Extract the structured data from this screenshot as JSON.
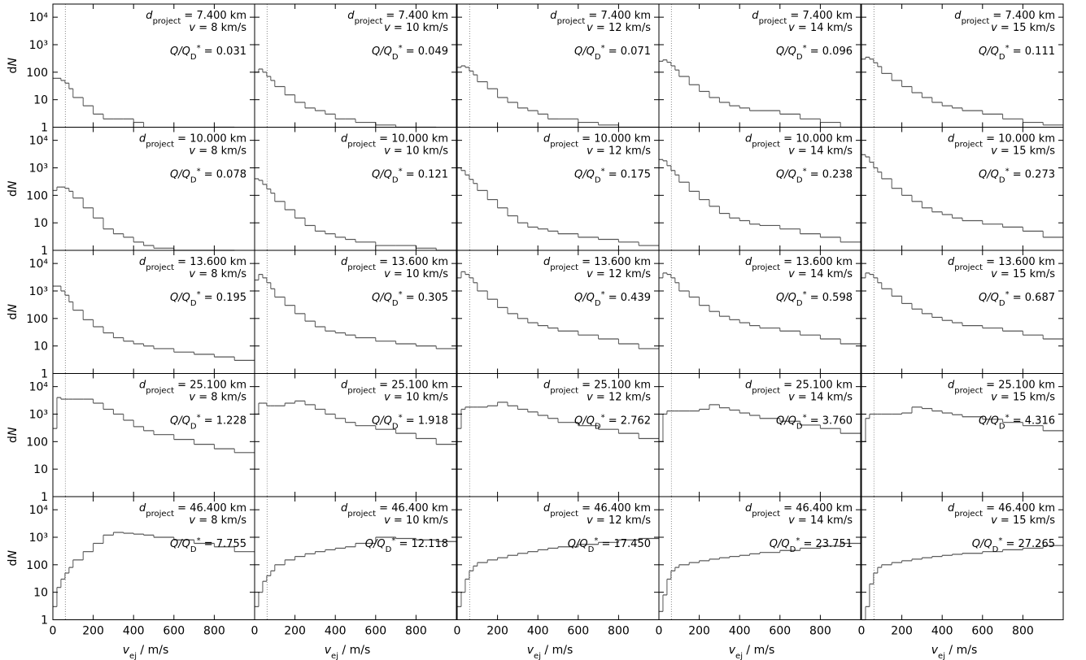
{
  "chart_data": {
    "type": "histogram-grid",
    "log_y": true,
    "xlim": [
      0,
      1000
    ],
    "ylim": [
      1,
      30000
    ],
    "xticks": [
      0,
      200,
      400,
      600,
      800
    ],
    "yticks": [
      1,
      10,
      100,
      {
        "value": 1000,
        "label": "10³"
      },
      {
        "value": 10000,
        "label": "10⁴"
      }
    ],
    "reference_x": 62,
    "color": "#555555",
    "xlabel": {
      "symbol": "v",
      "subscript": "ej",
      "unit": " / m/s"
    },
    "ylabel": {
      "prefix": "d",
      "symbol": "N"
    },
    "labels": {
      "d_symbol": "d",
      "d_subscript": "project",
      "v_symbol": "v",
      "q_symbol": "Q/Q",
      "q_subscript": "D",
      "q_superscript": "*",
      "equals": " = "
    },
    "bins": [
      0,
      20,
      40,
      60,
      80,
      100,
      150,
      200,
      250,
      300,
      350,
      400,
      450,
      500,
      600,
      700,
      800,
      900,
      1000
    ],
    "panels": [
      {
        "d_project": "7.400 km",
        "v": "8 km/s",
        "q": "0.031",
        "values": [
          60,
          60,
          50,
          40,
          25,
          12,
          6,
          3,
          2,
          2,
          2,
          1.5,
          null,
          null,
          null,
          null,
          1,
          null
        ]
      },
      {
        "d_project": "7.400 km",
        "v": "10 km/s",
        "q": "0.049",
        "values": [
          100,
          130,
          100,
          70,
          50,
          30,
          15,
          8,
          5,
          4,
          3,
          2,
          2,
          1.5,
          1.2,
          1,
          1,
          null
        ]
      },
      {
        "d_project": "7.400 km",
        "v": "12 km/s",
        "q": "0.071",
        "values": [
          150,
          170,
          150,
          110,
          80,
          45,
          25,
          12,
          8,
          5,
          4,
          3,
          2,
          2,
          1.5,
          1.2,
          1,
          1
        ]
      },
      {
        "d_project": "7.400 km",
        "v": "14 km/s",
        "q": "0.096",
        "values": [
          250,
          280,
          230,
          170,
          120,
          70,
          35,
          20,
          12,
          8,
          6,
          5,
          4,
          4,
          3,
          2,
          1.5,
          1
        ]
      },
      {
        "d_project": "7.400 km",
        "v": "15 km/s",
        "q": "0.111",
        "values": [
          300,
          350,
          300,
          220,
          160,
          90,
          50,
          30,
          18,
          12,
          8,
          6,
          5,
          4,
          3,
          2,
          1.5,
          1.2
        ]
      },
      {
        "d_project": "10.000 km",
        "v": "8 km/s",
        "q": "0.078",
        "values": [
          150,
          200,
          200,
          180,
          140,
          80,
          35,
          15,
          6,
          4,
          3,
          2,
          1.5,
          1.2,
          1,
          1,
          1,
          null
        ]
      },
      {
        "d_project": "10.000 km",
        "v": "10 km/s",
        "q": "0.121",
        "values": [
          400,
          350,
          250,
          170,
          120,
          60,
          30,
          15,
          8,
          5,
          4,
          3,
          2.5,
          2,
          1.5,
          1.5,
          1.2,
          1
        ]
      },
      {
        "d_project": "10.000 km",
        "v": "12 km/s",
        "q": "0.175",
        "values": [
          1000,
          800,
          550,
          380,
          270,
          150,
          70,
          35,
          18,
          10,
          7,
          6,
          5,
          4,
          3,
          2.5,
          2,
          1.5
        ]
      },
      {
        "d_project": "10.000 km",
        "v": "14 km/s",
        "q": "0.238",
        "values": [
          2000,
          1800,
          1200,
          800,
          550,
          300,
          140,
          70,
          40,
          22,
          15,
          12,
          9,
          8,
          6,
          4,
          3,
          2
        ]
      },
      {
        "d_project": "10.000 km",
        "v": "15 km/s",
        "q": "0.273",
        "values": [
          3000,
          2500,
          1600,
          1000,
          700,
          400,
          180,
          100,
          60,
          35,
          25,
          20,
          15,
          12,
          9,
          7,
          5,
          3
        ]
      },
      {
        "d_project": "13.600 km",
        "v": "8 km/s",
        "q": "0.195",
        "values": [
          1500,
          1500,
          1000,
          700,
          400,
          200,
          90,
          50,
          30,
          20,
          15,
          12,
          10,
          8,
          6,
          5,
          4,
          3
        ]
      },
      {
        "d_project": "13.600 km",
        "v": "10 km/s",
        "q": "0.305",
        "values": [
          2500,
          4000,
          3000,
          2000,
          1200,
          600,
          300,
          150,
          80,
          50,
          35,
          30,
          25,
          20,
          15,
          12,
          10,
          8
        ]
      },
      {
        "d_project": "13.600 km",
        "v": "12 km/s",
        "q": "0.439",
        "values": [
          3000,
          5000,
          4000,
          3000,
          2000,
          1000,
          500,
          250,
          150,
          100,
          70,
          55,
          45,
          35,
          25,
          18,
          12,
          8
        ]
      },
      {
        "d_project": "13.600 km",
        "v": "14 km/s",
        "q": "0.598",
        "values": [
          3000,
          4500,
          4000,
          3000,
          2000,
          1000,
          600,
          300,
          180,
          120,
          90,
          70,
          55,
          45,
          35,
          25,
          18,
          12
        ]
      },
      {
        "d_project": "13.600 km",
        "v": "15 km/s",
        "q": "0.687",
        "values": [
          3000,
          4500,
          4000,
          3000,
          2000,
          1200,
          650,
          350,
          220,
          150,
          110,
          85,
          70,
          55,
          45,
          35,
          25,
          18
        ]
      },
      {
        "d_project": "25.100 km",
        "v": "8 km/s",
        "q": "1.228",
        "values": [
          300,
          4000,
          3500,
          3500,
          3500,
          3500,
          3500,
          2500,
          1500,
          1000,
          600,
          350,
          250,
          180,
          120,
          80,
          55,
          40
        ]
      },
      {
        "d_project": "25.100 km",
        "v": "10 km/s",
        "q": "1.918",
        "values": [
          1000,
          2500,
          2500,
          2000,
          2000,
          2000,
          2500,
          3000,
          2200,
          1500,
          1000,
          700,
          500,
          380,
          280,
          200,
          130,
          80
        ]
      },
      {
        "d_project": "25.100 km",
        "v": "12 km/s",
        "q": "2.762",
        "values": [
          300,
          1500,
          1800,
          1800,
          1800,
          1800,
          2000,
          2700,
          2000,
          1500,
          1200,
          900,
          700,
          500,
          380,
          280,
          200,
          130
        ]
      },
      {
        "d_project": "25.100 km",
        "v": "14 km/s",
        "q": "3.760",
        "values": [
          100,
          1000,
          1300,
          1300,
          1300,
          1300,
          1300,
          1500,
          2200,
          1700,
          1400,
          1100,
          900,
          700,
          550,
          400,
          300,
          200
        ]
      },
      {
        "d_project": "25.100 km",
        "v": "15 km/s",
        "q": "4.316",
        "values": [
          100,
          700,
          1000,
          1000,
          1000,
          1000,
          1000,
          1100,
          1800,
          1600,
          1300,
          1100,
          950,
          800,
          650,
          500,
          380,
          250
        ]
      },
      {
        "d_project": "46.400 km",
        "v": "8 km/s",
        "q": "7.755",
        "values": [
          3,
          15,
          30,
          50,
          80,
          150,
          300,
          600,
          1200,
          1500,
          1400,
          1300,
          1200,
          1000,
          800,
          600,
          450,
          300
        ]
      },
      {
        "d_project": "46.400 km",
        "v": "10 km/s",
        "q": "12.118",
        "values": [
          3,
          10,
          25,
          40,
          60,
          100,
          150,
          200,
          250,
          300,
          350,
          400,
          450,
          600,
          1000,
          900,
          800,
          700
        ]
      },
      {
        "d_project": "46.400 km",
        "v": "12 km/s",
        "q": "17.450",
        "values": [
          3,
          10,
          30,
          60,
          90,
          120,
          150,
          180,
          220,
          260,
          300,
          350,
          400,
          450,
          550,
          650,
          800,
          900
        ]
      },
      {
        "d_project": "46.400 km",
        "v": "14 km/s",
        "q": "23.751",
        "values": [
          2,
          8,
          30,
          60,
          80,
          100,
          120,
          140,
          160,
          180,
          200,
          220,
          250,
          280,
          330,
          400,
          480,
          600
        ]
      },
      {
        "d_project": "46.400 km",
        "v": "15 km/s",
        "q": "27.265",
        "values": [
          1,
          3,
          20,
          50,
          80,
          100,
          120,
          140,
          160,
          180,
          200,
          220,
          240,
          260,
          300,
          350,
          400,
          500
        ]
      }
    ]
  }
}
